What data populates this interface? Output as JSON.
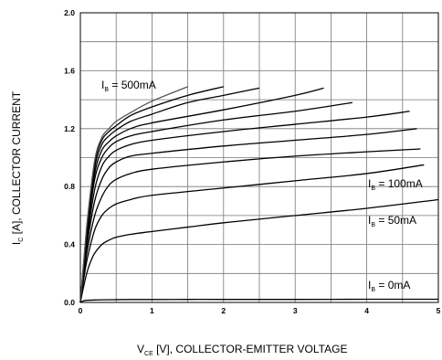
{
  "chart_data": {
    "type": "line",
    "xlabel": {
      "main": "V",
      "sub": "CE",
      "rest": " [V], COLLECTOR-EMITTER VOLTAGE"
    },
    "ylabel": {
      "main": "I",
      "sub": "C",
      "rest": " [A], COLLECTOR CURRENT"
    },
    "xlim": [
      0,
      5
    ],
    "ylim": [
      0,
      2.0
    ],
    "xticks": [
      0,
      1,
      2,
      3,
      4,
      5
    ],
    "yticks": [
      0.0,
      0.4,
      0.8,
      1.2,
      1.6,
      2.0
    ],
    "xtick_labels": [
      "0",
      "1",
      "2",
      "3",
      "4",
      "5"
    ],
    "ytick_labels": [
      "0.0",
      "0.4",
      "0.8",
      "1.2",
      "1.6",
      "2.0"
    ],
    "grid": true,
    "annotations": [
      {
        "main": "I",
        "sub": "B",
        "rest": " = 500mA"
      },
      {
        "main": "I",
        "sub": "B",
        "rest": " = 100mA"
      },
      {
        "main": "I",
        "sub": "B",
        "rest": " = 50mA"
      },
      {
        "main": "I",
        "sub": "B",
        "rest": " = 0mA"
      }
    ],
    "series": [
      {
        "x": [
          0,
          0.05,
          0.1,
          0.2,
          0.3,
          0.45,
          0.7,
          1.0,
          1.5,
          2.0,
          3.0,
          4.0,
          5.0
        ],
        "y": [
          0,
          0.012,
          0.015,
          0.017,
          0.018,
          0.019,
          0.02,
          0.02,
          0.021,
          0.021,
          0.021,
          0.022,
          0.022
        ]
      },
      {
        "x": [
          0,
          0.05,
          0.1,
          0.15,
          0.2,
          0.3,
          0.4,
          0.5,
          0.7,
          1.0,
          1.5,
          2.0,
          3.0,
          4.0,
          5.0
        ],
        "y": [
          0,
          0.12,
          0.22,
          0.29,
          0.34,
          0.4,
          0.43,
          0.45,
          0.47,
          0.49,
          0.52,
          0.55,
          0.6,
          0.65,
          0.71
        ]
      },
      {
        "x": [
          0,
          0.05,
          0.1,
          0.2,
          0.3,
          0.4,
          0.5,
          0.7,
          1.0,
          2.0,
          3.0,
          4.0,
          4.8
        ],
        "y": [
          0,
          0.17,
          0.31,
          0.5,
          0.6,
          0.65,
          0.68,
          0.71,
          0.74,
          0.79,
          0.84,
          0.89,
          0.95
        ]
      },
      {
        "x": [
          0,
          0.05,
          0.1,
          0.2,
          0.3,
          0.4,
          0.5,
          0.7,
          1.0,
          2.0,
          3.0,
          4.0,
          4.75
        ],
        "y": [
          0,
          0.2,
          0.37,
          0.6,
          0.73,
          0.81,
          0.85,
          0.89,
          0.92,
          0.97,
          1.01,
          1.04,
          1.06
        ]
      },
      {
        "x": [
          0,
          0.05,
          0.1,
          0.2,
          0.3,
          0.4,
          0.5,
          0.7,
          1.0,
          2.0,
          3.0,
          4.0,
          4.7
        ],
        "y": [
          0,
          0.22,
          0.42,
          0.7,
          0.85,
          0.93,
          0.97,
          1.01,
          1.03,
          1.08,
          1.12,
          1.16,
          1.2
        ]
      },
      {
        "x": [
          0,
          0.05,
          0.1,
          0.2,
          0.3,
          0.4,
          0.5,
          0.7,
          1.0,
          2.0,
          3.0,
          4.0,
          4.6
        ],
        "y": [
          0,
          0.24,
          0.46,
          0.78,
          0.94,
          1.01,
          1.05,
          1.09,
          1.12,
          1.18,
          1.23,
          1.28,
          1.32
        ]
      },
      {
        "x": [
          0,
          0.05,
          0.1,
          0.2,
          0.3,
          0.4,
          0.5,
          0.7,
          1.0,
          2.0,
          3.0,
          3.8
        ],
        "y": [
          0,
          0.26,
          0.5,
          0.85,
          1.0,
          1.07,
          1.11,
          1.15,
          1.18,
          1.26,
          1.32,
          1.38
        ]
      },
      {
        "x": [
          0,
          0.05,
          0.1,
          0.2,
          0.3,
          0.4,
          0.5,
          0.7,
          1.0,
          2.0,
          3.0,
          3.4
        ],
        "y": [
          0,
          0.27,
          0.52,
          0.89,
          1.05,
          1.11,
          1.15,
          1.2,
          1.24,
          1.33,
          1.43,
          1.48
        ]
      },
      {
        "x": [
          0,
          0.05,
          0.1,
          0.2,
          0.3,
          0.4,
          0.5,
          0.7,
          1.0,
          1.5,
          2.0,
          2.5
        ],
        "y": [
          0,
          0.28,
          0.54,
          0.93,
          1.09,
          1.15,
          1.19,
          1.25,
          1.3,
          1.38,
          1.43,
          1.48
        ]
      },
      {
        "x": [
          0,
          0.05,
          0.1,
          0.2,
          0.3,
          0.4,
          0.5,
          0.7,
          1.0,
          1.5,
          2.0
        ],
        "y": [
          0,
          0.29,
          0.56,
          0.96,
          1.12,
          1.18,
          1.22,
          1.29,
          1.35,
          1.43,
          1.49
        ]
      },
      {
        "x": [
          0,
          0.05,
          0.1,
          0.2,
          0.3,
          0.4,
          0.5,
          0.7,
          1.0,
          1.5
        ],
        "y": [
          0,
          0.3,
          0.58,
          0.98,
          1.14,
          1.2,
          1.25,
          1.31,
          1.39,
          1.49
        ]
      }
    ]
  }
}
